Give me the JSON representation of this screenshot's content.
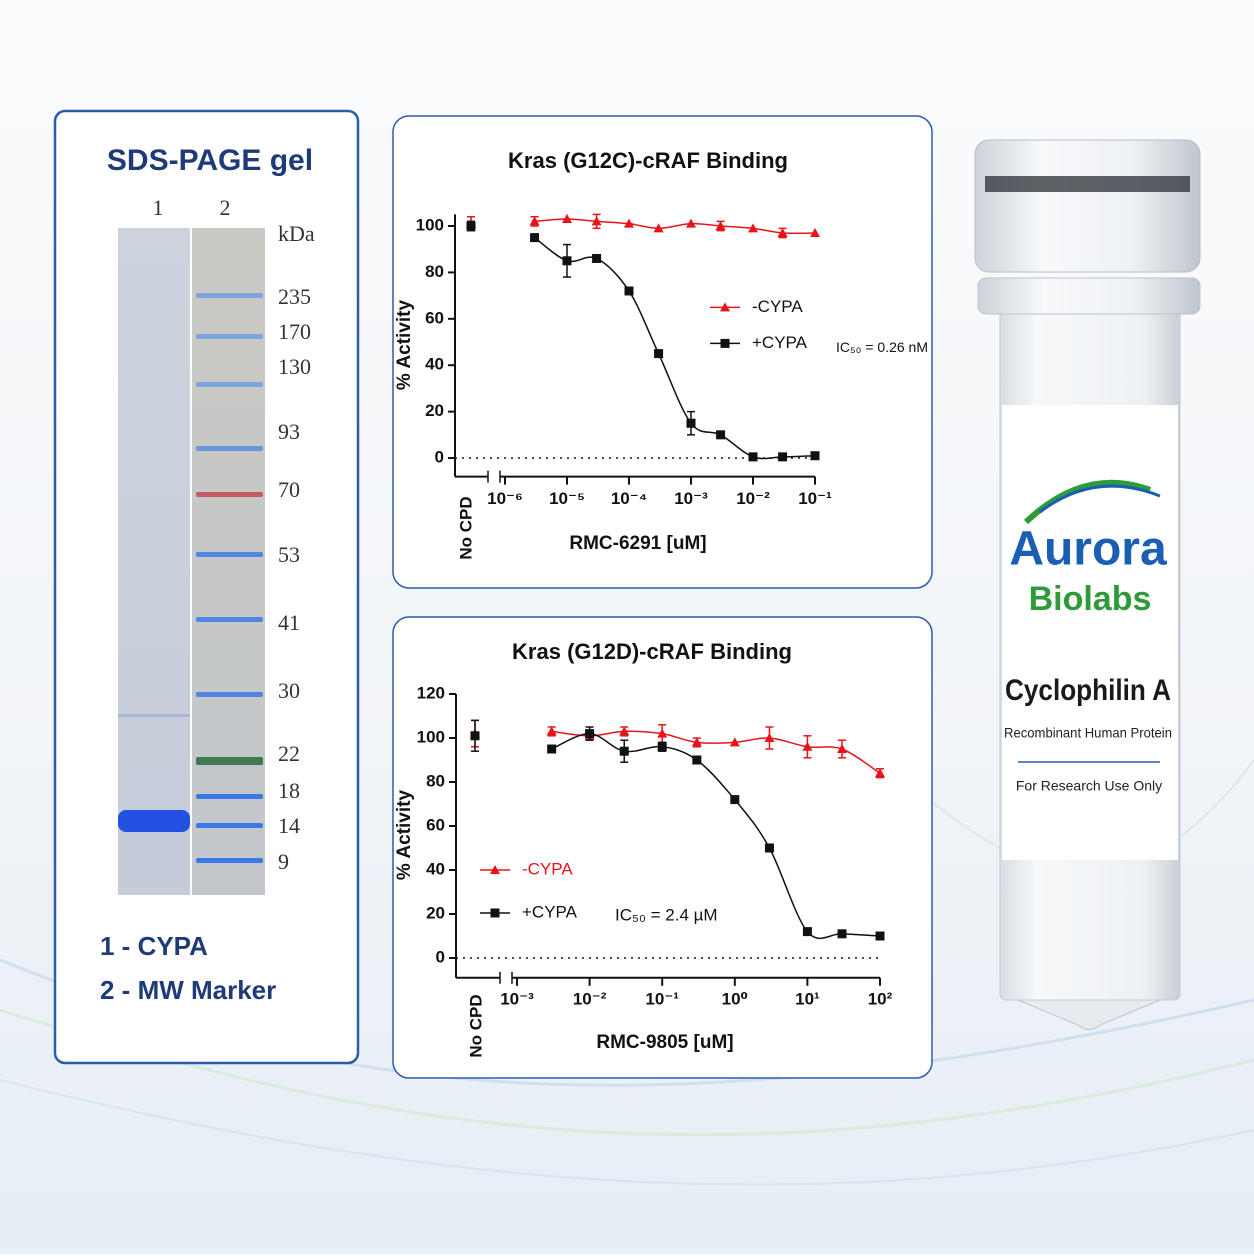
{
  "gel": {
    "title": "SDS-PAGE gel",
    "lanes": [
      "1",
      "2"
    ],
    "unit": "kDa",
    "markers": [
      235,
      170,
      130,
      93,
      70,
      53,
      41,
      30,
      22,
      18,
      14,
      9
    ],
    "marker_colors": [
      "#7fa3df",
      "#7fa3df",
      "#7fa3df",
      "#6b96e0",
      "#c45a63",
      "#4f86e2",
      "#4f86e2",
      "#4f86e2",
      "#3f7a50",
      "#3a78e6",
      "#3a78e6",
      "#3a78e6"
    ],
    "legend": [
      "1 - CYPA",
      "2 - MW Marker"
    ]
  },
  "chart_data": [
    {
      "type": "scatter",
      "title": "Kras (G12C)-cRAF Binding",
      "x_label": "RMC-6291 [uM]",
      "y_label": "% Activity",
      "no_cpd_label": "No CPD",
      "x_log": true,
      "xlim": [
        1e-06,
        0.1
      ],
      "xticks": [
        {
          "value": 1e-06,
          "label": "10⁻⁶"
        },
        {
          "value": 1e-05,
          "label": "10⁻⁵"
        },
        {
          "value": 0.0001,
          "label": "10⁻⁴"
        },
        {
          "value": 0.001,
          "label": "10⁻³"
        },
        {
          "value": 0.01,
          "label": "10⁻²"
        },
        {
          "value": 0.1,
          "label": "10⁻¹"
        }
      ],
      "ylim": [
        -8,
        105
      ],
      "yticks": [
        0,
        20,
        40,
        60,
        80,
        100
      ],
      "reference_line": 0,
      "legend": "center-right",
      "legend_text_color": "black",
      "annotation": "IC₅₀ = 0.26 nM",
      "series": [
        {
          "name": "-CYPA",
          "color": "#e8141b",
          "marker": "triangle",
          "no_cpd_value": 101,
          "no_cpd_error": 3,
          "x": [
            3e-06,
            1e-05,
            3e-05,
            0.0001,
            0.0003,
            0.001,
            0.003,
            0.01,
            0.03,
            0.1
          ],
          "values": [
            102,
            103,
            102,
            101,
            99,
            101,
            100,
            99,
            97,
            97
          ],
          "errors": [
            2,
            null,
            3,
            null,
            null,
            null,
            2,
            null,
            2,
            null
          ]
        },
        {
          "name": "+CYPA",
          "color": "#111111",
          "marker": "square",
          "no_cpd_value": 100,
          "no_cpd_error": 2,
          "x": [
            3e-06,
            1e-05,
            3e-05,
            0.0001,
            0.0003,
            0.001,
            0.003,
            0.01,
            0.03,
            0.1
          ],
          "values": [
            95,
            85,
            86,
            72,
            45,
            15,
            10,
            0.5,
            0.5,
            1
          ],
          "errors": [
            null,
            7,
            null,
            null,
            null,
            5,
            null,
            null,
            null,
            null
          ]
        }
      ]
    },
    {
      "type": "scatter",
      "title": "Kras (G12D)-cRAF Binding",
      "x_label": "RMC-9805 [uM]",
      "y_label": "% Activity",
      "no_cpd_label": "No CPD",
      "x_log": true,
      "xlim": [
        0.001,
        100
      ],
      "xticks": [
        {
          "value": 0.001,
          "label": "10⁻³"
        },
        {
          "value": 0.01,
          "label": "10⁻²"
        },
        {
          "value": 0.1,
          "label": "10⁻¹"
        },
        {
          "value": 1,
          "label": "10⁰"
        },
        {
          "value": 10,
          "label": "10¹"
        },
        {
          "value": 100,
          "label": "10²"
        }
      ],
      "ylim": [
        -9,
        120
      ],
      "yticks": [
        0,
        20,
        40,
        60,
        80,
        100,
        120
      ],
      "reference_line": 0,
      "legend": "lower-left",
      "legend_text_color": "series",
      "annotation": "IC₅₀ = 2.4 µM",
      "series": [
        {
          "name": "-CYPA",
          "color": "#e8141b",
          "marker": "triangle",
          "no_cpd_value": 102,
          "no_cpd_error": 6,
          "x": [
            0.003,
            0.01,
            0.03,
            0.1,
            0.3,
            1,
            3,
            10,
            30,
            100
          ],
          "values": [
            103,
            101,
            103,
            102,
            98,
            98,
            100,
            96,
            95,
            84
          ],
          "errors": [
            2,
            null,
            2,
            4,
            2,
            null,
            5,
            5,
            4,
            2
          ]
        },
        {
          "name": "+CYPA",
          "color": "#111111",
          "marker": "square",
          "no_cpd_value": 101,
          "no_cpd_error": 7,
          "x": [
            0.003,
            0.01,
            0.03,
            0.1,
            0.3,
            1,
            3,
            10,
            30,
            100
          ],
          "values": [
            95,
            102,
            94,
            96,
            90,
            72,
            50,
            12,
            11,
            10
          ],
          "errors": [
            null,
            3,
            5,
            2,
            null,
            null,
            null,
            null,
            null,
            null
          ]
        }
      ]
    }
  ],
  "vial": {
    "brand": "Aurora",
    "brand_sub": "Biolabs",
    "product": "Cyclophilin A",
    "description": "Recombinant Human Protein",
    "note": "For Research Use Only"
  }
}
